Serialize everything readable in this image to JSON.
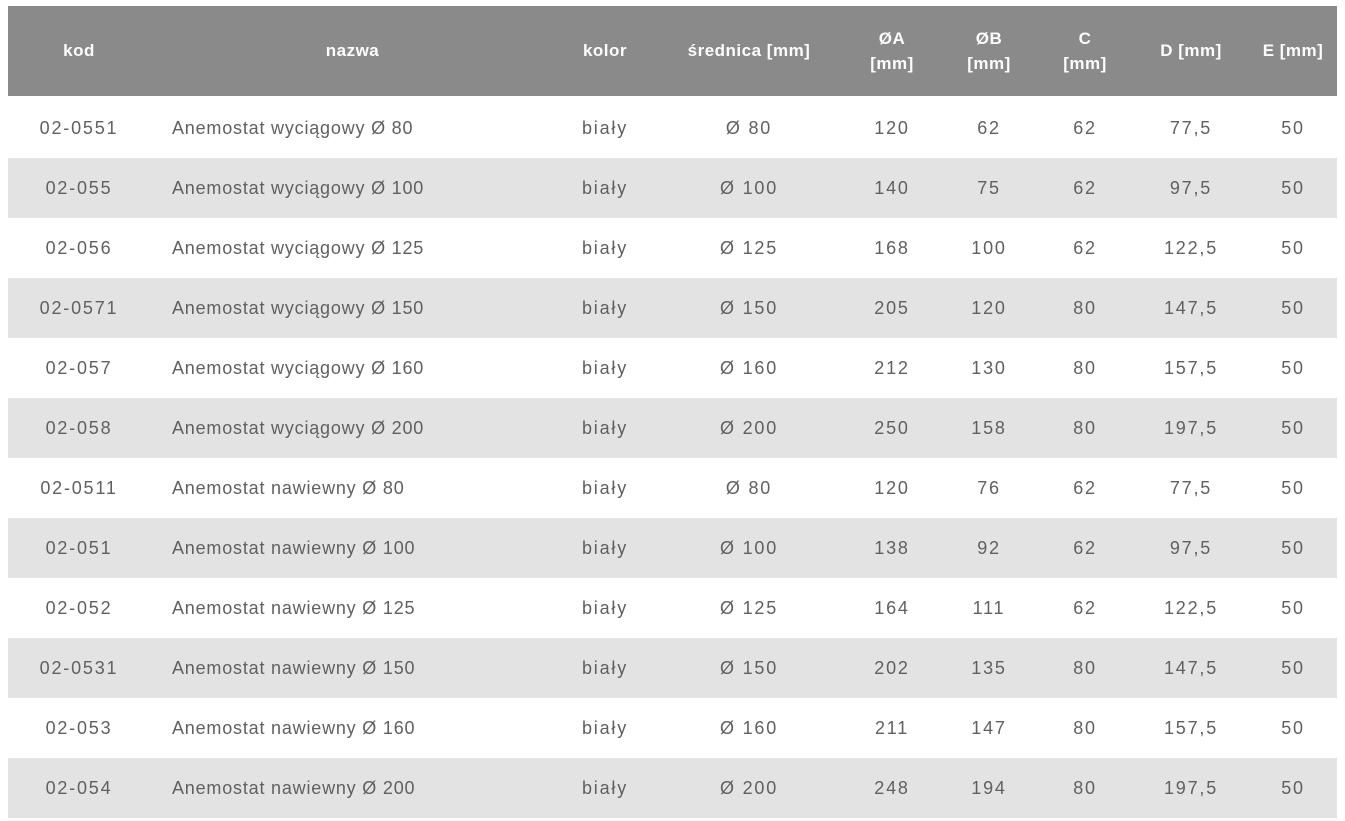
{
  "colors": {
    "header_bg": "#8a8a8a",
    "header_text": "#fdfdfd",
    "row_bg": "#ffffff",
    "row_alt_bg": "#e3e3e3",
    "body_text": "#606060"
  },
  "table": {
    "columns": [
      {
        "key": "kod",
        "line1": "kod",
        "line2": ""
      },
      {
        "key": "nazwa",
        "line1": "nazwa",
        "line2": ""
      },
      {
        "key": "kolor",
        "line1": "kolor",
        "line2": ""
      },
      {
        "key": "srednica",
        "line1": "średnica [mm]",
        "line2": ""
      },
      {
        "key": "oa",
        "line1": "ØA",
        "line2": "[mm]"
      },
      {
        "key": "ob",
        "line1": "ØB",
        "line2": "[mm]"
      },
      {
        "key": "c",
        "line1": "C",
        "line2": "[mm]"
      },
      {
        "key": "d",
        "line1": "D [mm]",
        "line2": ""
      },
      {
        "key": "e",
        "line1": "E [mm]",
        "line2": ""
      }
    ],
    "rows": [
      [
        "02-0551",
        "Anemostat wyciągowy Ø 80",
        "biały",
        "Ø 80",
        "120",
        "62",
        "62",
        "77,5",
        "50"
      ],
      [
        "02-055",
        "Anemostat wyciągowy Ø 100",
        "biały",
        "Ø 100",
        "140",
        "75",
        "62",
        "97,5",
        "50"
      ],
      [
        "02-056",
        "Anemostat wyciągowy Ø 125",
        "biały",
        "Ø 125",
        "168",
        "100",
        "62",
        "122,5",
        "50"
      ],
      [
        "02-0571",
        "Anemostat wyciągowy Ø 150",
        "biały",
        "Ø 150",
        "205",
        "120",
        "80",
        "147,5",
        "50"
      ],
      [
        "02-057",
        "Anemostat wyciągowy Ø 160",
        "biały",
        "Ø 160",
        "212",
        "130",
        "80",
        "157,5",
        "50"
      ],
      [
        "02-058",
        "Anemostat wyciągowy Ø 200",
        "biały",
        "Ø 200",
        "250",
        "158",
        "80",
        "197,5",
        "50"
      ],
      [
        "02-0511",
        "Anemostat nawiewny Ø 80",
        "biały",
        "Ø 80",
        "120",
        "76",
        "62",
        "77,5",
        "50"
      ],
      [
        "02-051",
        "Anemostat nawiewny Ø 100",
        "biały",
        "Ø 100",
        "138",
        "92",
        "62",
        "97,5",
        "50"
      ],
      [
        "02-052",
        "Anemostat nawiewny Ø 125",
        "biały",
        "Ø 125",
        "164",
        "111",
        "62",
        "122,5",
        "50"
      ],
      [
        "02-0531",
        "Anemostat nawiewny Ø 150",
        "biały",
        "Ø 150",
        "202",
        "135",
        "80",
        "147,5",
        "50"
      ],
      [
        "02-053",
        "Anemostat nawiewny Ø 160",
        "biały",
        "Ø 160",
        "211",
        "147",
        "80",
        "157,5",
        "50"
      ],
      [
        "02-054",
        "Anemostat nawiewny Ø 200",
        "biały",
        "Ø 200",
        "248",
        "194",
        "80",
        "197,5",
        "50"
      ]
    ]
  },
  "chart_data": {
    "type": "table",
    "title": "",
    "columns": [
      "kod",
      "nazwa",
      "kolor",
      "średnica [mm]",
      "ØA [mm]",
      "ØB [mm]",
      "C [mm]",
      "D [mm]",
      "E [mm]"
    ],
    "rows": [
      [
        "02-0551",
        "Anemostat wyciągowy Ø 80",
        "biały",
        "Ø 80",
        "120",
        "62",
        "62",
        "77,5",
        "50"
      ],
      [
        "02-055",
        "Anemostat wyciągowy Ø 100",
        "biały",
        "Ø 100",
        "140",
        "75",
        "62",
        "97,5",
        "50"
      ],
      [
        "02-056",
        "Anemostat wyciągowy Ø 125",
        "biały",
        "Ø 125",
        "168",
        "100",
        "62",
        "122,5",
        "50"
      ],
      [
        "02-0571",
        "Anemostat wyciągowy Ø 150",
        "biały",
        "Ø 150",
        "205",
        "120",
        "80",
        "147,5",
        "50"
      ],
      [
        "02-057",
        "Anemostat wyciągowy Ø 160",
        "biały",
        "Ø 160",
        "212",
        "130",
        "80",
        "157,5",
        "50"
      ],
      [
        "02-058",
        "Anemostat wyciągowy Ø 200",
        "biały",
        "Ø 200",
        "250",
        "158",
        "80",
        "197,5",
        "50"
      ],
      [
        "02-0511",
        "Anemostat nawiewny Ø 80",
        "biały",
        "Ø 80",
        "120",
        "76",
        "62",
        "77,5",
        "50"
      ],
      [
        "02-051",
        "Anemostat nawiewny Ø 100",
        "biały",
        "Ø 100",
        "138",
        "92",
        "62",
        "97,5",
        "50"
      ],
      [
        "02-052",
        "Anemostat nawiewny Ø 125",
        "biały",
        "Ø 125",
        "164",
        "111",
        "62",
        "122,5",
        "50"
      ],
      [
        "02-0531",
        "Anemostat nawiewny Ø 150",
        "biały",
        "Ø 150",
        "202",
        "135",
        "80",
        "147,5",
        "50"
      ],
      [
        "02-053",
        "Anemostat nawiewny Ø 160",
        "biały",
        "Ø 160",
        "211",
        "147",
        "80",
        "157,5",
        "50"
      ],
      [
        "02-054",
        "Anemostat nawiewny Ø 200",
        "biały",
        "Ø 200",
        "248",
        "194",
        "80",
        "197,5",
        "50"
      ]
    ]
  }
}
